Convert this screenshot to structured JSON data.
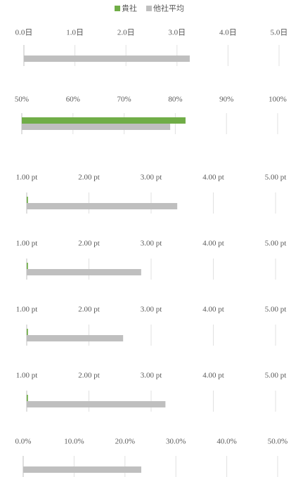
{
  "chart_data": [
    {
      "type": "bar",
      "series": [
        {
          "name": "貴社",
          "color": "#70ad47",
          "values": [
            null
          ]
        },
        {
          "name": "他社平均",
          "color": "#bfbfbf",
          "values": [
            3.25
          ]
        }
      ],
      "xlim": [
        0,
        5
      ],
      "xticks": [
        {
          "value": 0,
          "label": "0.0日"
        },
        {
          "value": 1,
          "label": "1.0日"
        },
        {
          "value": 2,
          "label": "2.0日"
        },
        {
          "value": 3,
          "label": "3.0日"
        },
        {
          "value": 4,
          "label": "4.0日"
        },
        {
          "value": 5,
          "label": "5.0日"
        }
      ],
      "grid": true
    },
    {
      "type": "bar",
      "series": [
        {
          "name": "貴社",
          "color": "#70ad47",
          "values": [
            82
          ]
        },
        {
          "name": "他社平均",
          "color": "#bfbfbf",
          "values": [
            79
          ]
        }
      ],
      "xlim": [
        50,
        100
      ],
      "xticks": [
        {
          "value": 50,
          "label": "50%"
        },
        {
          "value": 60,
          "label": "60%"
        },
        {
          "value": 70,
          "label": "70%"
        },
        {
          "value": 80,
          "label": "80%"
        },
        {
          "value": 90,
          "label": "90%"
        },
        {
          "value": 100,
          "label": "100%"
        }
      ],
      "grid": true
    },
    {
      "type": "bar",
      "series": [
        {
          "name": "貴社",
          "color": "#70ad47",
          "values": [
            1.02
          ]
        },
        {
          "name": "他社平均",
          "color": "#bfbfbf",
          "values": [
            3.42
          ]
        }
      ],
      "xlim": [
        1,
        5
      ],
      "xticks": [
        {
          "value": 1,
          "label": "1.00 pt"
        },
        {
          "value": 2,
          "label": "2.00 pt"
        },
        {
          "value": 3,
          "label": "3.00 pt"
        },
        {
          "value": 4,
          "label": "4.00 pt"
        },
        {
          "value": 5,
          "label": "5.00 pt"
        }
      ],
      "grid": true
    },
    {
      "type": "bar",
      "series": [
        {
          "name": "貴社",
          "color": "#70ad47",
          "values": [
            1.02
          ]
        },
        {
          "name": "他社平均",
          "color": "#bfbfbf",
          "values": [
            2.84
          ]
        }
      ],
      "xlim": [
        1,
        5
      ],
      "xticks": [
        {
          "value": 1,
          "label": "1.00 pt"
        },
        {
          "value": 2,
          "label": "2.00 pt"
        },
        {
          "value": 3,
          "label": "3.00 pt"
        },
        {
          "value": 4,
          "label": "4.00 pt"
        },
        {
          "value": 5,
          "label": "5.00 pt"
        }
      ],
      "grid": true
    },
    {
      "type": "bar",
      "series": [
        {
          "name": "貴社",
          "color": "#70ad47",
          "values": [
            1.02
          ]
        },
        {
          "name": "他社平均",
          "color": "#bfbfbf",
          "values": [
            2.55
          ]
        }
      ],
      "xlim": [
        1,
        5
      ],
      "xticks": [
        {
          "value": 1,
          "label": "1.00 pt"
        },
        {
          "value": 2,
          "label": "2.00 pt"
        },
        {
          "value": 3,
          "label": "3.00 pt"
        },
        {
          "value": 4,
          "label": "4.00 pt"
        },
        {
          "value": 5,
          "label": "5.00 pt"
        }
      ],
      "grid": true
    },
    {
      "type": "bar",
      "series": [
        {
          "name": "貴社",
          "color": "#70ad47",
          "values": [
            1.02
          ]
        },
        {
          "name": "他社平均",
          "color": "#bfbfbf",
          "values": [
            3.23
          ]
        }
      ],
      "xlim": [
        1,
        5
      ],
      "xticks": [
        {
          "value": 1,
          "label": "1.00 pt"
        },
        {
          "value": 2,
          "label": "2.00 pt"
        },
        {
          "value": 3,
          "label": "3.00 pt"
        },
        {
          "value": 4,
          "label": "4.00 pt"
        },
        {
          "value": 5,
          "label": "5.00 pt"
        }
      ],
      "grid": true
    },
    {
      "type": "bar",
      "series": [
        {
          "name": "貴社",
          "color": "#70ad47",
          "values": [
            null
          ]
        },
        {
          "name": "他社平均",
          "color": "#bfbfbf",
          "values": [
            23.2
          ]
        }
      ],
      "xlim": [
        0,
        50
      ],
      "xticks": [
        {
          "value": 0,
          "label": "0.0%"
        },
        {
          "value": 10,
          "label": "10.0%"
        },
        {
          "value": 20,
          "label": "20.0%"
        },
        {
          "value": 30,
          "label": "30.0%"
        },
        {
          "value": 40,
          "label": "40.0%"
        },
        {
          "value": 50,
          "label": "50.0%"
        }
      ],
      "grid": true
    }
  ]
}
